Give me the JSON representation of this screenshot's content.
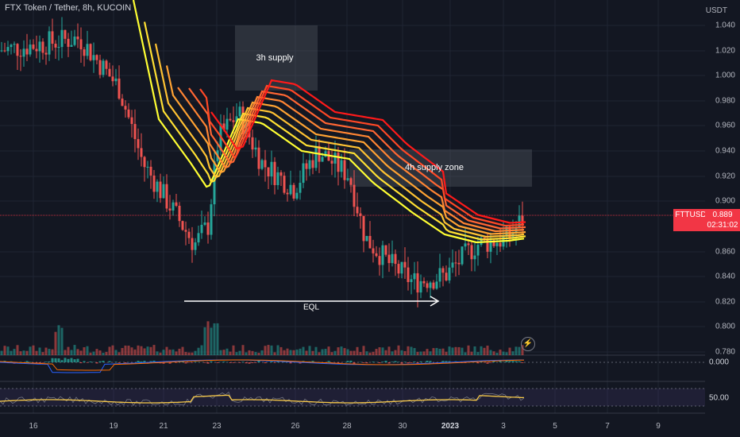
{
  "symbol": {
    "title": "FTX Token / Tether, 8h, KUCOIN"
  },
  "price_axis": {
    "unit": "USDT",
    "ticks": [
      "1.040",
      "1.020",
      "1.000",
      "0.980",
      "0.960",
      "0.940",
      "0.920",
      "0.900",
      "0.860",
      "0.840",
      "0.820",
      "0.800",
      "0.780"
    ]
  },
  "time_axis": {
    "ticks": [
      "16",
      "19",
      "21",
      "23",
      "26",
      "28",
      "30",
      "2023",
      "3",
      "5",
      "7",
      "9"
    ]
  },
  "last_price": {
    "symbol": "FTTUSDT",
    "value": "0.889",
    "countdown": "02:31:02",
    "color": "#f23645"
  },
  "annotations": {
    "supply_3h": "3h supply",
    "supply_4h": "4h supply zone",
    "eql": "EQL"
  },
  "indicators": {
    "macd_value": "0.000",
    "rsi_value": "50.00"
  },
  "icons": {
    "lightning": "lightning-icon"
  },
  "colors": {
    "up": "#26a69a",
    "down": "#ef5350",
    "ribbon_top": "#ff1a1a",
    "ribbon_bottom": "#ffff33",
    "rsi": "#f7c948"
  }
}
